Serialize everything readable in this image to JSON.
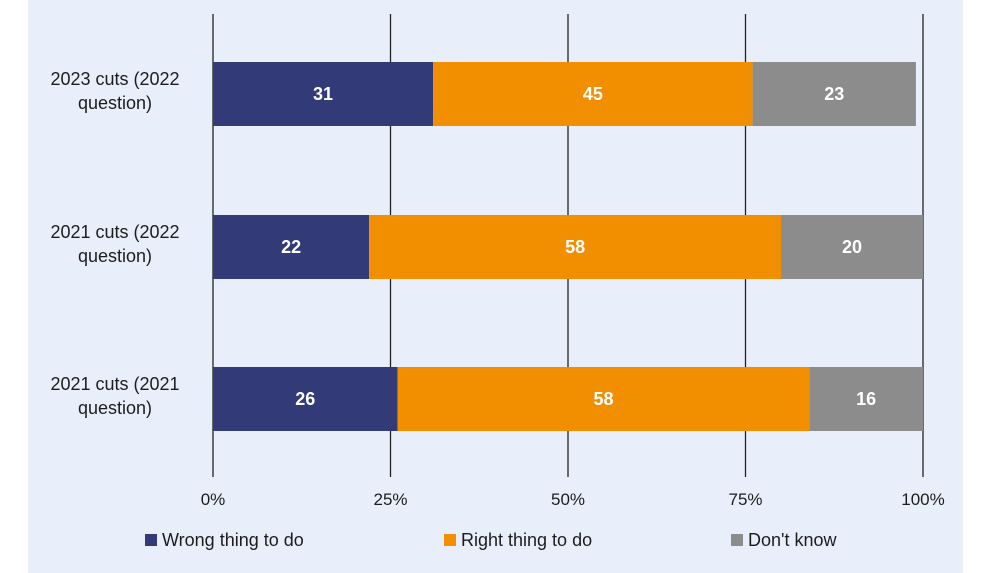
{
  "chart_data": {
    "type": "bar",
    "orientation": "horizontal",
    "stacked": true,
    "categories": [
      [
        "2023 cuts (2022",
        "question)"
      ],
      [
        "2021 cuts (2022",
        "question)"
      ],
      [
        "2021 cuts (2021",
        "question)"
      ]
    ],
    "series": [
      {
        "name": "Wrong thing to do",
        "values": [
          31,
          22,
          26
        ],
        "color": "#333a78"
      },
      {
        "name": "Right thing to do",
        "values": [
          45,
          58,
          58
        ],
        "color": "#f28f00"
      },
      {
        "name": "Don't know",
        "values": [
          23,
          20,
          16
        ],
        "color": "#8c8c8c"
      }
    ],
    "xlim": [
      0,
      100
    ],
    "xticks": [
      "0%",
      "25%",
      "50%",
      "75%",
      "100%"
    ],
    "grid": true,
    "legend_position": "bottom"
  }
}
